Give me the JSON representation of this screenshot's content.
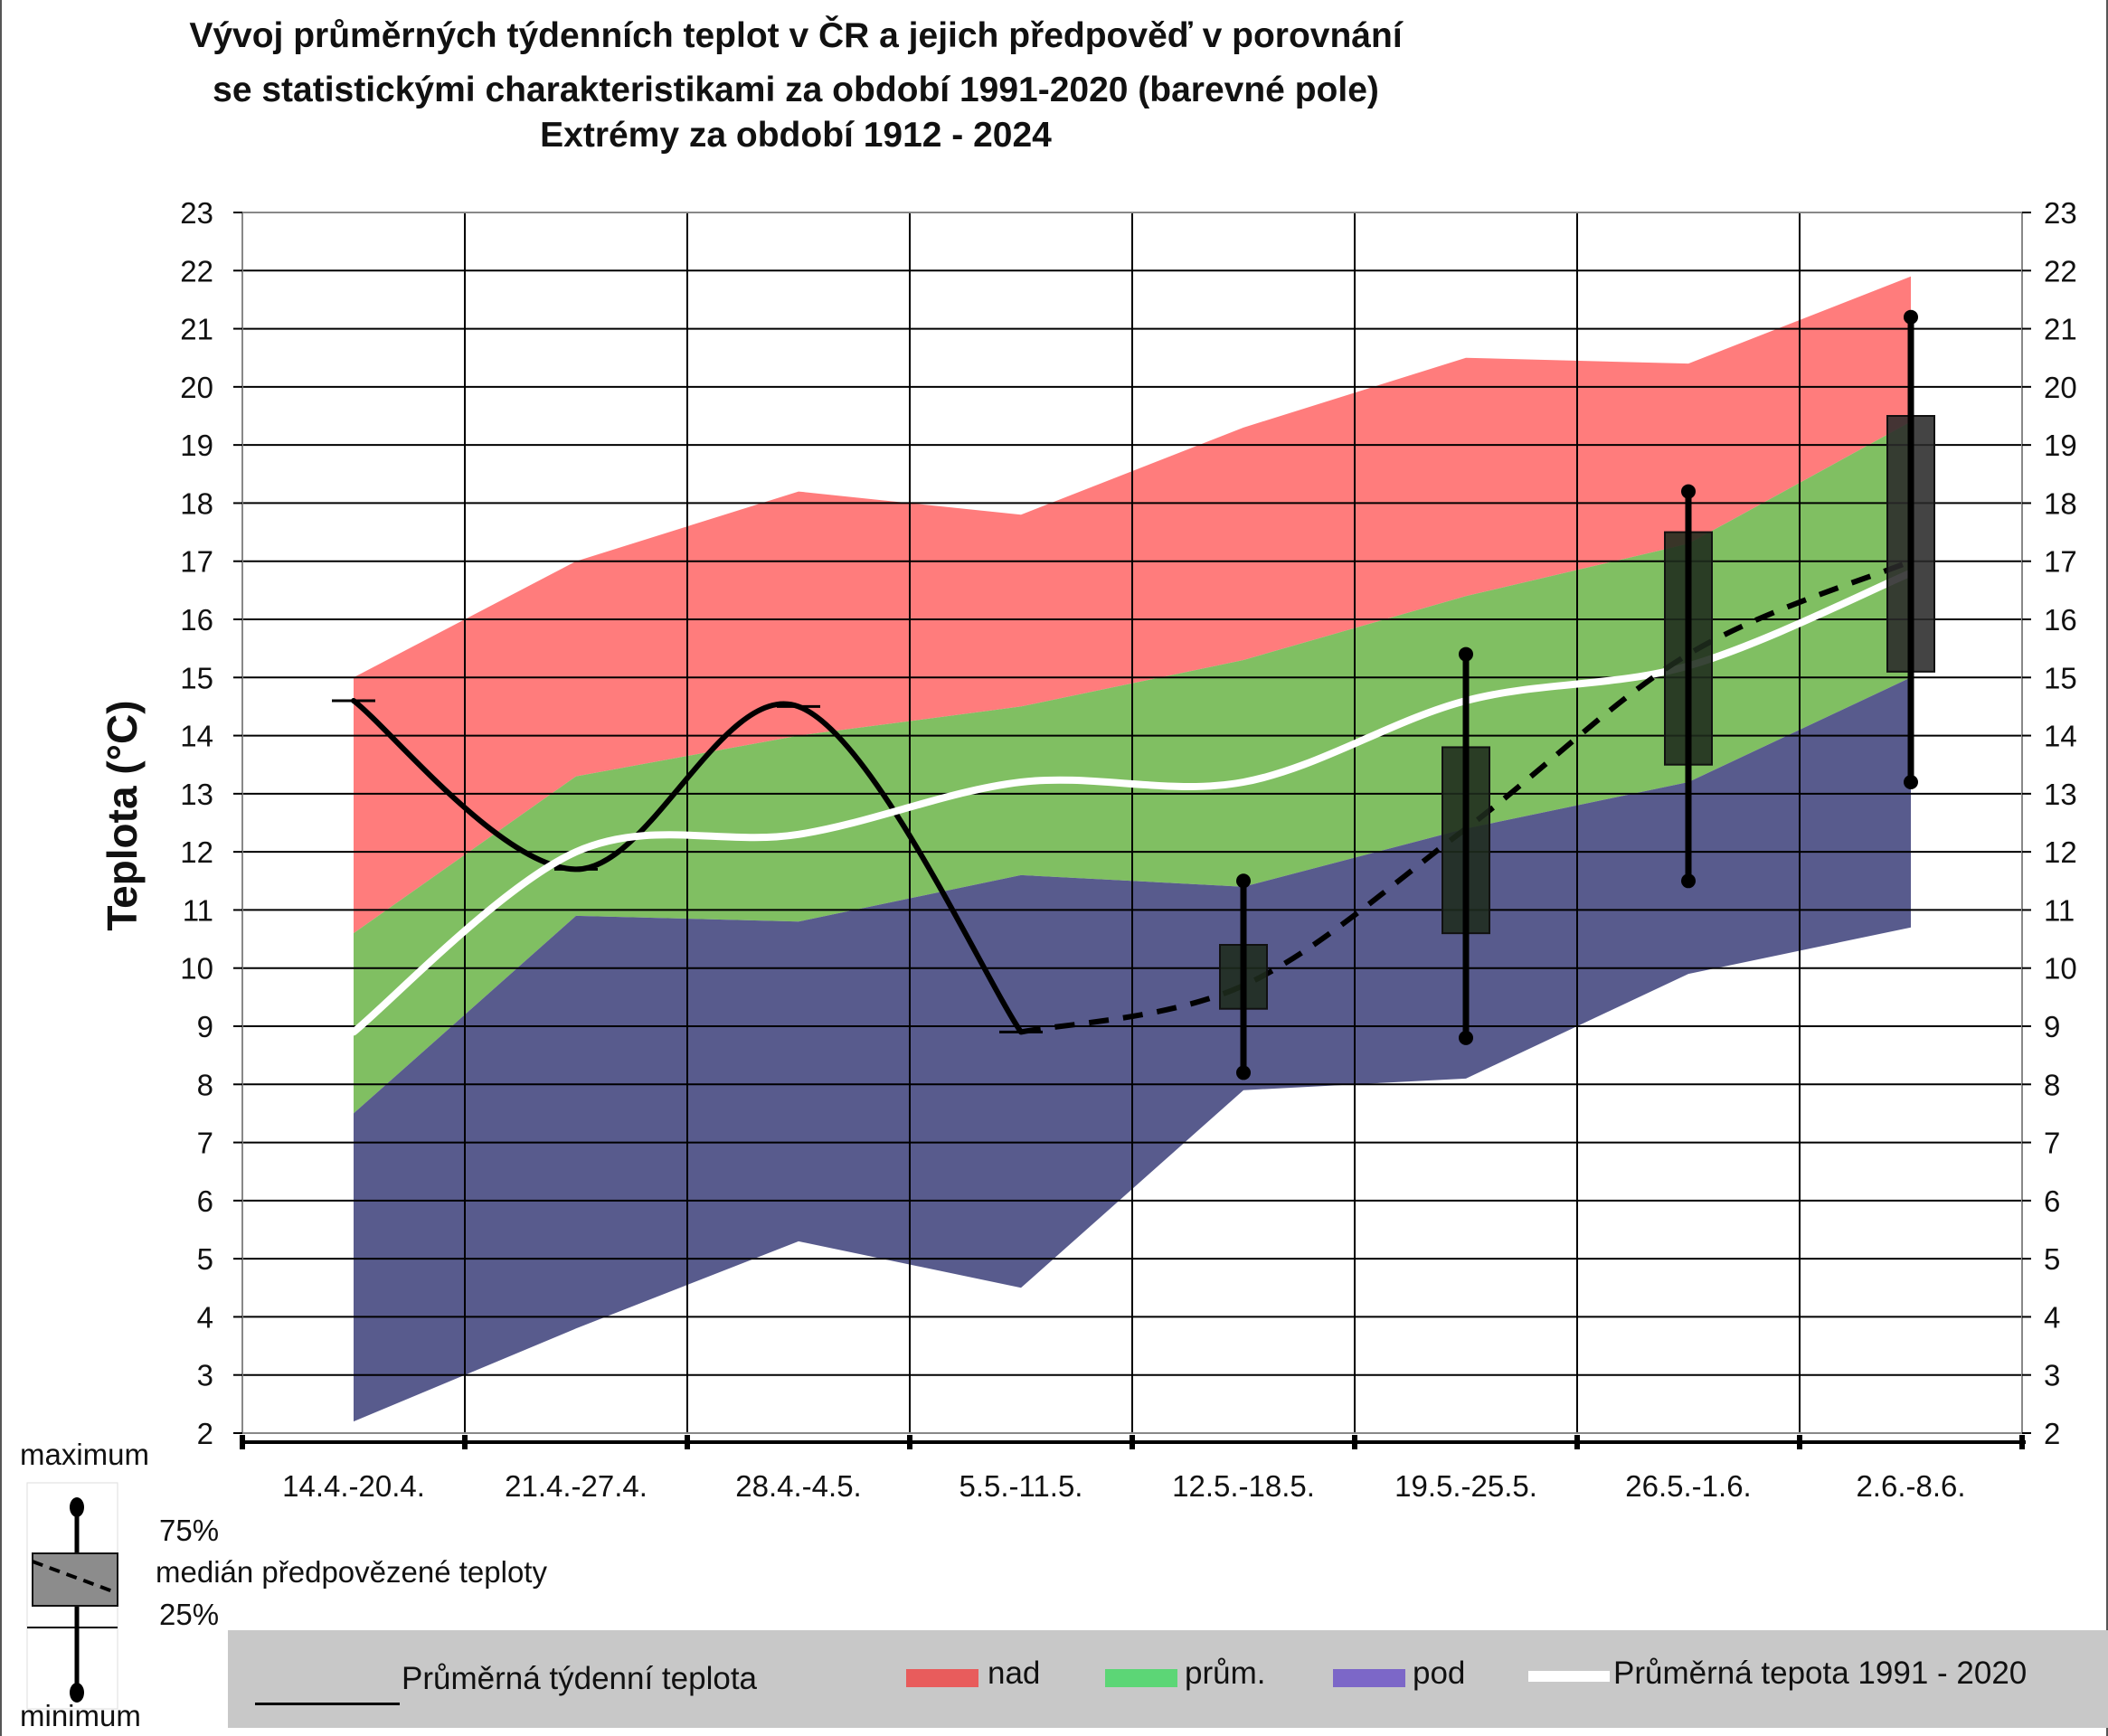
{
  "chart_data": {
    "type": "line",
    "title": [
      "Vývoj průměrných týdenních teplot v ČR a jejich předpověď v porovnání",
      "se statistickými charakteristikami za období 1991-2020 (barevné pole)",
      "Extrémy za období 1912 - 2024"
    ],
    "ylabel": "Teplota (°C)",
    "ylim": [
      2,
      23
    ],
    "yticks": [
      2,
      3,
      4,
      5,
      6,
      7,
      8,
      9,
      10,
      11,
      12,
      13,
      14,
      15,
      16,
      17,
      18,
      19,
      20,
      21,
      22,
      23
    ],
    "categories": [
      "14.4.-20.4.",
      "21.4.-27.4.",
      "28.4.-4.5.",
      "5.5.-11.5.",
      "12.5.-18.5.",
      "19.5.-25.5.",
      "26.5.-1.6.",
      "2.6.-8.6."
    ],
    "grid": true,
    "bands": {
      "min": [
        2.2,
        3.8,
        5.3,
        4.5,
        7.9,
        8.1,
        9.9,
        10.7
      ],
      "p25": [
        7.5,
        10.9,
        10.8,
        11.6,
        11.4,
        12.4,
        13.2,
        15.0
      ],
      "p75": [
        10.6,
        13.3,
        14.0,
        14.5,
        15.3,
        16.4,
        17.3,
        19.4
      ],
      "max": [
        15.0,
        17.0,
        18.2,
        17.8,
        19.3,
        20.5,
        20.4,
        21.9
      ]
    },
    "series": [
      {
        "name": "Průměrná týdenní teplota",
        "values": [
          14.6,
          11.7,
          14.5,
          8.9,
          null,
          null,
          null,
          null
        ],
        "style": "solid",
        "color": "#000000"
      },
      {
        "name": "Průměrná tepota 1991 - 2020",
        "values": [
          8.9,
          12.0,
          12.3,
          13.2,
          13.2,
          14.6,
          15.2,
          16.8
        ],
        "style": "solid",
        "color": "#ffffff"
      },
      {
        "name": "medián předpovězené teploty",
        "values": [
          null,
          null,
          null,
          8.9,
          9.7,
          12.4,
          15.4,
          17.0
        ],
        "style": "dashed",
        "color": "#000000"
      }
    ],
    "forecast_boxes": [
      {
        "category": "12.5.-18.5.",
        "min": 8.2,
        "p25": 9.3,
        "p75": 10.4,
        "max": 11.5
      },
      {
        "category": "19.5.-25.5.",
        "min": 8.8,
        "p25": 10.6,
        "p75": 13.8,
        "max": 15.4
      },
      {
        "category": "26.5.-1.6.",
        "min": 11.5,
        "p25": 13.5,
        "p75": 17.5,
        "max": 18.2
      },
      {
        "category": "2.6.-8.6.",
        "min": 13.2,
        "p25": 15.1,
        "p75": 19.5,
        "max": 21.2
      }
    ],
    "colors": {
      "nad": "#ff7c7c",
      "prum": "#80bf62",
      "pod": "#585b8d",
      "legend_nad": "#e85c5c",
      "legend_prum": "#5cd676",
      "legend_pod": "#7c67c8",
      "box_dark": "#1e2b1c",
      "box_light": "#2a2a2a"
    }
  },
  "legend": {
    "actual": "Průměrná týdenní teplota",
    "nad": "nad",
    "prum": "prům.",
    "pod": "pod",
    "normal": "Průměrná tepota 1991 - 2020"
  },
  "inset": {
    "maximum": "maximum",
    "p75": "75%",
    "median": "medián předpovězené teploty",
    "p25": "25%",
    "minimum": "minimum"
  }
}
